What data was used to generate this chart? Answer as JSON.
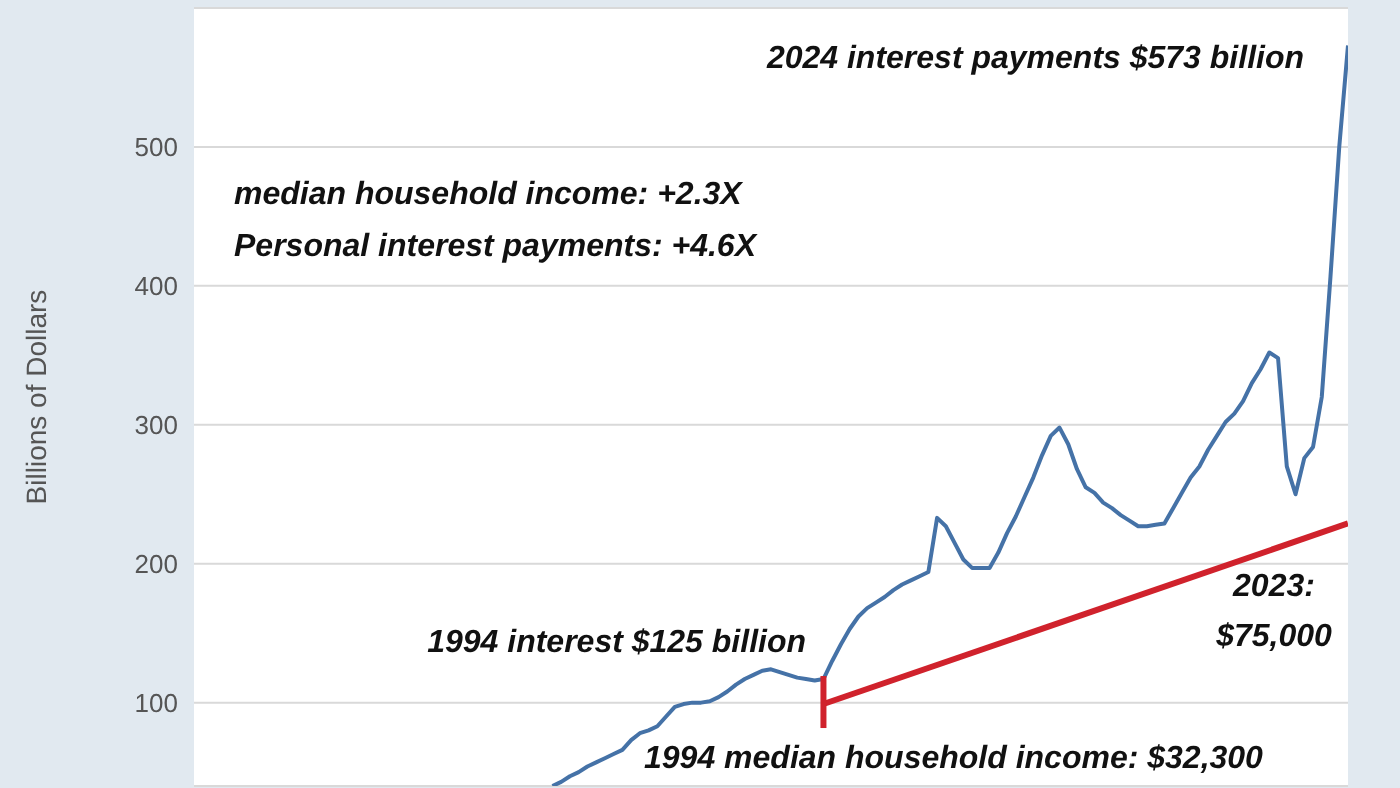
{
  "chart_data": {
    "type": "line",
    "ylabel": "Billions of Dollars",
    "categories": [
      null,
      null,
      null,
      null,
      null,
      null,
      null,
      null,
      null,
      null,
      null,
      null,
      null,
      null,
      null,
      null,
      null,
      null,
      null,
      null,
      null,
      null,
      null,
      null,
      null,
      null,
      null,
      null,
      null,
      null,
      null,
      null,
      null,
      null,
      null,
      null,
      null,
      null,
      null,
      null,
      null,
      null,
      null,
      null,
      null,
      null,
      null,
      null,
      null,
      null,
      null,
      null,
      null,
      null,
      null,
      null,
      null,
      null,
      null,
      null,
      null,
      null,
      null,
      null,
      null,
      null,
      null,
      null,
      null,
      null,
      null,
      null,
      null,
      null,
      null,
      null,
      null,
      null,
      null,
      null,
      null,
      null,
      null,
      null,
      null,
      null,
      null,
      null,
      null,
      null,
      null,
      null,
      null,
      null,
      null,
      null,
      null,
      null,
      null,
      null,
      null,
      null,
      null,
      null,
      null,
      null,
      null,
      null,
      null,
      null,
      null,
      null,
      null,
      null,
      null,
      null,
      null,
      null,
      null,
      null,
      null,
      null,
      null,
      null,
      null,
      null,
      null,
      null,
      null,
      null,
      null,
      null,
      null
    ],
    "ylim": [
      40,
      600
    ],
    "yticks": [
      100,
      200,
      300,
      400,
      500
    ],
    "tick_labels": "y",
    "grid": "y",
    "legend": false,
    "marker": "none",
    "line_style": "solid",
    "series": [
      {
        "color": "#4572a7",
        "values": [
          null,
          null,
          null,
          null,
          null,
          null,
          null,
          null,
          null,
          null,
          null,
          null,
          null,
          null,
          null,
          null,
          null,
          null,
          null,
          null,
          null,
          null,
          null,
          null,
          null,
          null,
          null,
          null,
          null,
          null,
          null,
          null,
          null,
          null,
          null,
          null,
          null,
          null,
          null,
          null,
          null,
          40,
          43,
          47,
          50,
          54,
          57,
          60,
          63,
          66,
          73,
          78,
          80,
          83,
          90,
          97,
          99,
          100,
          100,
          101,
          104,
          108,
          113,
          117,
          120,
          123,
          124,
          122,
          120,
          118,
          117,
          116,
          117,
          130,
          142,
          153,
          162,
          168,
          172,
          176,
          181,
          185,
          188,
          191,
          194,
          233,
          227,
          215,
          203,
          197,
          197,
          197,
          208,
          222,
          234,
          248,
          262,
          278,
          292,
          298,
          286,
          268,
          255,
          251,
          244,
          240,
          235,
          231,
          227,
          227,
          228,
          229,
          240,
          251,
          262,
          270,
          282,
          292,
          302,
          308,
          317,
          330,
          340,
          352,
          348,
          270,
          250,
          276,
          284,
          320,
          407,
          500,
          573
        ]
      },
      {
        "color": "#d0222c",
        "values": [
          null,
          null,
          null,
          null,
          null,
          null,
          null,
          null,
          null,
          null,
          null,
          null,
          null,
          null,
          null,
          null,
          null,
          null,
          null,
          null,
          null,
          null,
          null,
          null,
          null,
          null,
          null,
          null,
          null,
          null,
          null,
          null,
          null,
          null,
          null,
          null,
          null,
          null,
          null,
          null,
          null,
          null,
          null,
          null,
          null,
          null,
          null,
          null,
          null,
          null,
          null,
          null,
          null,
          null,
          null,
          null,
          null,
          null,
          null,
          null,
          null,
          null,
          null,
          null,
          null,
          null,
          null,
          null,
          null,
          null,
          null,
          null,
          99,
          null,
          null,
          null,
          null,
          null,
          null,
          null,
          null,
          null,
          null,
          null,
          null,
          null,
          null,
          null,
          null,
          null,
          null,
          null,
          null,
          null,
          null,
          null,
          null,
          null,
          null,
          null,
          null,
          null,
          null,
          null,
          null,
          null,
          null,
          null,
          null,
          null,
          null,
          null,
          null,
          null,
          null,
          null,
          null,
          null,
          null,
          null,
          null,
          null,
          null,
          null,
          null,
          null,
          null,
          null,
          null,
          null,
          null,
          null,
          229
        ]
      }
    ],
    "annotations": [
      "2024 interest payments $573 billion",
      "median household income: +2.3X",
      "Personal interest payments: +4.6X",
      "1994 interest $125 billion",
      "1994 median household income: $32,300",
      "2023: $75,000"
    ]
  }
}
